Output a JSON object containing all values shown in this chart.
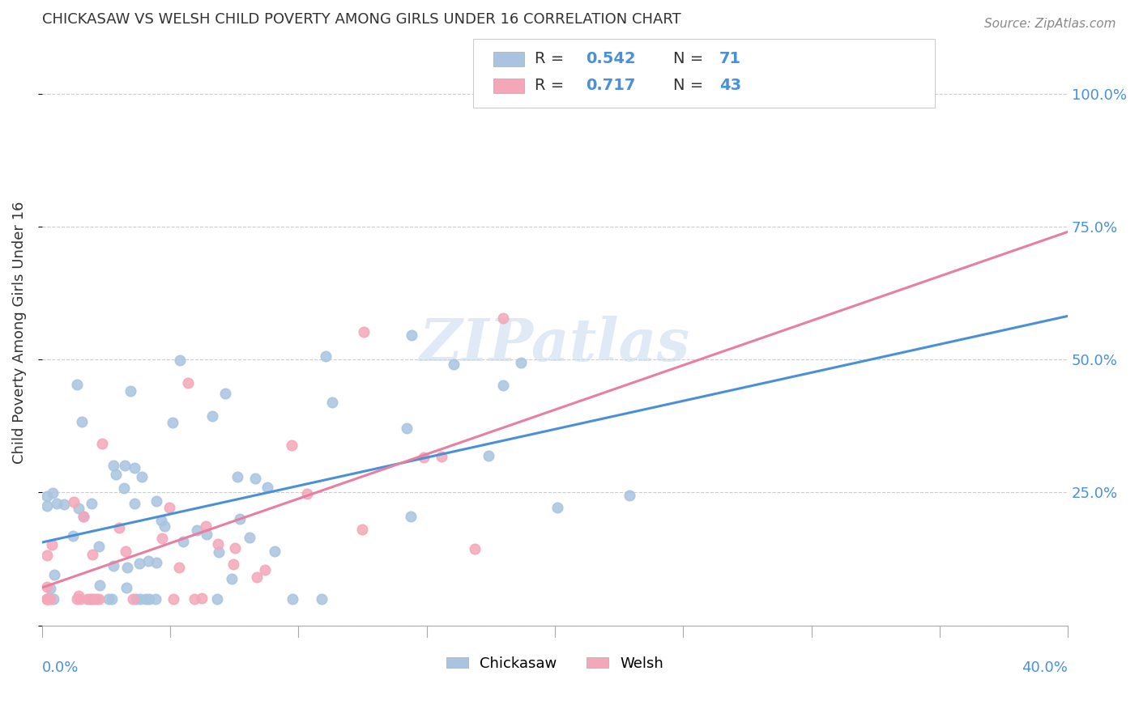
{
  "title": "CHICKASAW VS WELSH CHILD POVERTY AMONG GIRLS UNDER 16 CORRELATION CHART",
  "source": "Source: ZipAtlas.com",
  "ylabel": "Child Poverty Among Girls Under 16",
  "xlim": [
    0.0,
    0.4
  ],
  "ylim": [
    0.0,
    1.1
  ],
  "y_ticks": [
    0.0,
    0.25,
    0.5,
    0.75,
    1.0
  ],
  "watermark": "ZIPatlas",
  "chickasaw_R": 0.542,
  "chickasaw_N": 71,
  "welsh_R": 0.717,
  "welsh_N": 43,
  "chickasaw_color": "#a8c4e0",
  "welsh_color": "#f4a7b9",
  "chickasaw_line_color": "#4a90d9",
  "welsh_line_color": "#e87fa0",
  "background_color": "#ffffff",
  "grid_color": "#cccccc"
}
